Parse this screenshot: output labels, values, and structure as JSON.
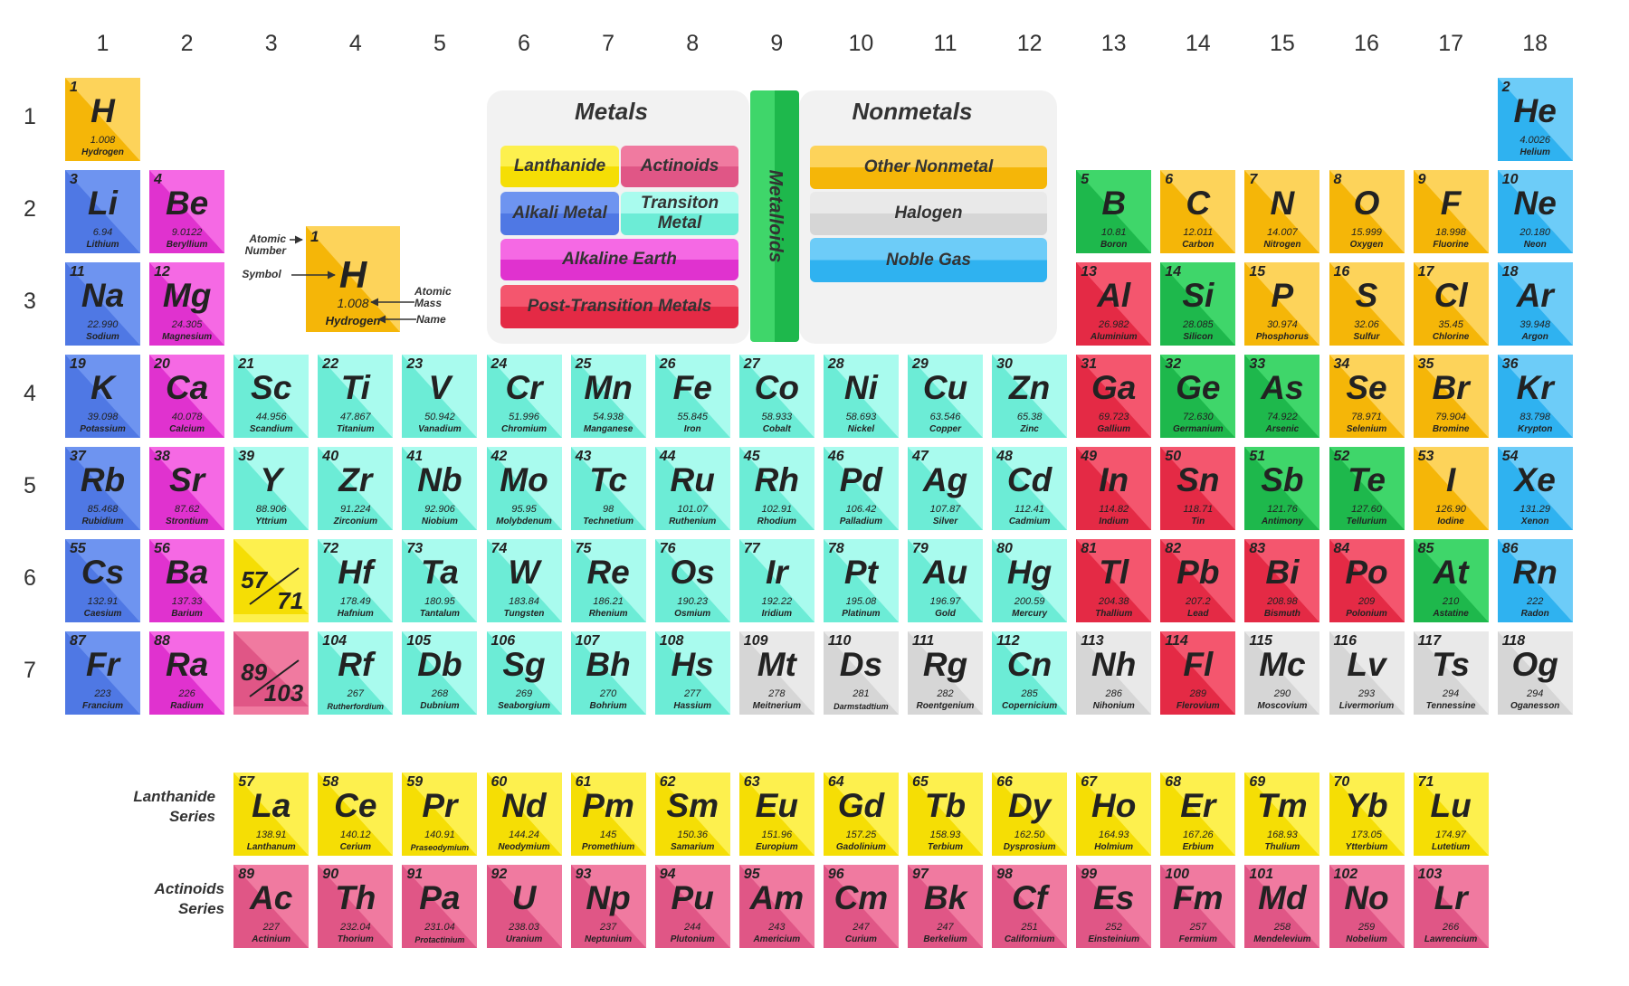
{
  "groups": [
    "1",
    "2",
    "3",
    "4",
    "5",
    "6",
    "7",
    "8",
    "9",
    "10",
    "11",
    "12",
    "13",
    "14",
    "15",
    "16",
    "17",
    "18"
  ],
  "periods": [
    "1",
    "2",
    "3",
    "4",
    "5",
    "6",
    "7"
  ],
  "colors": {
    "alkali": [
      "#6e94f0",
      "#4f78e4"
    ],
    "alkaline": [
      "#f569e4",
      "#e032cf"
    ],
    "transition": [
      "#a9fbee",
      "#6cecd6"
    ],
    "post": [
      "#f4566e",
      "#e42a45"
    ],
    "metalloid": [
      "#3fd66a",
      "#1eb84c"
    ],
    "nonmetal": [
      "#fdd35a",
      "#f5b608"
    ],
    "halogen": [
      "#fdd35a",
      "#f5b608"
    ],
    "noble": [
      "#6dccf8",
      "#2fb2f0"
    ],
    "unknown": [
      "#e9e9e9",
      "#d6d6d6"
    ],
    "lanthanide": [
      "#fdf04e",
      "#f5de05"
    ],
    "actinide": [
      "#f07aa0",
      "#e05686"
    ]
  },
  "elements": [
    {
      "n": "1",
      "s": "H",
      "m": "1.008",
      "name": "Hydrogen",
      "g": 1,
      "p": 1,
      "c": "nonmetal"
    },
    {
      "n": "2",
      "s": "He",
      "m": "4.0026",
      "name": "Helium",
      "g": 18,
      "p": 1,
      "c": "noble"
    },
    {
      "n": "3",
      "s": "Li",
      "m": "6.94",
      "name": "Lithium",
      "g": 1,
      "p": 2,
      "c": "alkali"
    },
    {
      "n": "4",
      "s": "Be",
      "m": "9.0122",
      "name": "Beryllium",
      "g": 2,
      "p": 2,
      "c": "alkaline"
    },
    {
      "n": "5",
      "s": "B",
      "m": "10.81",
      "name": "Boron",
      "g": 13,
      "p": 2,
      "c": "metalloid"
    },
    {
      "n": "6",
      "s": "C",
      "m": "12.011",
      "name": "Carbon",
      "g": 14,
      "p": 2,
      "c": "nonmetal"
    },
    {
      "n": "7",
      "s": "N",
      "m": "14.007",
      "name": "Nitrogen",
      "g": 15,
      "p": 2,
      "c": "nonmetal"
    },
    {
      "n": "8",
      "s": "O",
      "m": "15.999",
      "name": "Oxygen",
      "g": 16,
      "p": 2,
      "c": "nonmetal"
    },
    {
      "n": "9",
      "s": "F",
      "m": "18.998",
      "name": "Fluorine",
      "g": 17,
      "p": 2,
      "c": "halogen"
    },
    {
      "n": "10",
      "s": "Ne",
      "m": "20.180",
      "name": "Neon",
      "g": 18,
      "p": 2,
      "c": "noble"
    },
    {
      "n": "11",
      "s": "Na",
      "m": "22.990",
      "name": "Sodium",
      "g": 1,
      "p": 3,
      "c": "alkali"
    },
    {
      "n": "12",
      "s": "Mg",
      "m": "24.305",
      "name": "Magnesium",
      "g": 2,
      "p": 3,
      "c": "alkaline"
    },
    {
      "n": "13",
      "s": "Al",
      "m": "26.982",
      "name": "Aluminium",
      "g": 13,
      "p": 3,
      "c": "post"
    },
    {
      "n": "14",
      "s": "Si",
      "m": "28.085",
      "name": "Silicon",
      "g": 14,
      "p": 3,
      "c": "metalloid"
    },
    {
      "n": "15",
      "s": "P",
      "m": "30.974",
      "name": "Phosphorus",
      "g": 15,
      "p": 3,
      "c": "nonmetal"
    },
    {
      "n": "16",
      "s": "S",
      "m": "32.06",
      "name": "Sulfur",
      "g": 16,
      "p": 3,
      "c": "nonmetal"
    },
    {
      "n": "17",
      "s": "Cl",
      "m": "35.45",
      "name": "Chlorine",
      "g": 17,
      "p": 3,
      "c": "halogen"
    },
    {
      "n": "18",
      "s": "Ar",
      "m": "39.948",
      "name": "Argon",
      "g": 18,
      "p": 3,
      "c": "noble"
    },
    {
      "n": "19",
      "s": "K",
      "m": "39.098",
      "name": "Potassium",
      "g": 1,
      "p": 4,
      "c": "alkali"
    },
    {
      "n": "20",
      "s": "Ca",
      "m": "40.078",
      "name": "Calcium",
      "g": 2,
      "p": 4,
      "c": "alkaline"
    },
    {
      "n": "21",
      "s": "Sc",
      "m": "44.956",
      "name": "Scandium",
      "g": 3,
      "p": 4,
      "c": "transition"
    },
    {
      "n": "22",
      "s": "Ti",
      "m": "47.867",
      "name": "Titanium",
      "g": 4,
      "p": 4,
      "c": "transition"
    },
    {
      "n": "23",
      "s": "V",
      "m": "50.942",
      "name": "Vanadium",
      "g": 5,
      "p": 4,
      "c": "transition"
    },
    {
      "n": "24",
      "s": "Cr",
      "m": "51.996",
      "name": "Chromium",
      "g": 6,
      "p": 4,
      "c": "transition"
    },
    {
      "n": "25",
      "s": "Mn",
      "m": "54.938",
      "name": "Manganese",
      "g": 7,
      "p": 4,
      "c": "transition"
    },
    {
      "n": "26",
      "s": "Fe",
      "m": "55.845",
      "name": "Iron",
      "g": 8,
      "p": 4,
      "c": "transition"
    },
    {
      "n": "27",
      "s": "Co",
      "m": "58.933",
      "name": "Cobalt",
      "g": 9,
      "p": 4,
      "c": "transition"
    },
    {
      "n": "28",
      "s": "Ni",
      "m": "58.693",
      "name": "Nickel",
      "g": 10,
      "p": 4,
      "c": "transition"
    },
    {
      "n": "29",
      "s": "Cu",
      "m": "63.546",
      "name": "Copper",
      "g": 11,
      "p": 4,
      "c": "transition"
    },
    {
      "n": "30",
      "s": "Zn",
      "m": "65.38",
      "name": "Zinc",
      "g": 12,
      "p": 4,
      "c": "transition"
    },
    {
      "n": "31",
      "s": "Ga",
      "m": "69.723",
      "name": "Gallium",
      "g": 13,
      "p": 4,
      "c": "post"
    },
    {
      "n": "32",
      "s": "Ge",
      "m": "72.630",
      "name": "Germanium",
      "g": 14,
      "p": 4,
      "c": "metalloid"
    },
    {
      "n": "33",
      "s": "As",
      "m": "74.922",
      "name": "Arsenic",
      "g": 15,
      "p": 4,
      "c": "metalloid"
    },
    {
      "n": "34",
      "s": "Se",
      "m": "78.971",
      "name": "Selenium",
      "g": 16,
      "p": 4,
      "c": "nonmetal"
    },
    {
      "n": "35",
      "s": "Br",
      "m": "79.904",
      "name": "Bromine",
      "g": 17,
      "p": 4,
      "c": "halogen"
    },
    {
      "n": "36",
      "s": "Kr",
      "m": "83.798",
      "name": "Krypton",
      "g": 18,
      "p": 4,
      "c": "noble"
    },
    {
      "n": "37",
      "s": "Rb",
      "m": "85.468",
      "name": "Rubidium",
      "g": 1,
      "p": 5,
      "c": "alkali"
    },
    {
      "n": "38",
      "s": "Sr",
      "m": "87.62",
      "name": "Strontium",
      "g": 2,
      "p": 5,
      "c": "alkaline"
    },
    {
      "n": "39",
      "s": "Y",
      "m": "88.906",
      "name": "Yttrium",
      "g": 3,
      "p": 5,
      "c": "transition"
    },
    {
      "n": "40",
      "s": "Zr",
      "m": "91.224",
      "name": "Zirconium",
      "g": 4,
      "p": 5,
      "c": "transition"
    },
    {
      "n": "41",
      "s": "Nb",
      "m": "92.906",
      "name": "Niobium",
      "g": 5,
      "p": 5,
      "c": "transition"
    },
    {
      "n": "42",
      "s": "Mo",
      "m": "95.95",
      "name": "Molybdenum",
      "g": 6,
      "p": 5,
      "c": "transition"
    },
    {
      "n": "43",
      "s": "Tc",
      "m": "98",
      "name": "Technetium",
      "g": 7,
      "p": 5,
      "c": "transition"
    },
    {
      "n": "44",
      "s": "Ru",
      "m": "101.07",
      "name": "Ruthenium",
      "g": 8,
      "p": 5,
      "c": "transition"
    },
    {
      "n": "45",
      "s": "Rh",
      "m": "102.91",
      "name": "Rhodium",
      "g": 9,
      "p": 5,
      "c": "transition"
    },
    {
      "n": "46",
      "s": "Pd",
      "m": "106.42",
      "name": "Palladium",
      "g": 10,
      "p": 5,
      "c": "transition"
    },
    {
      "n": "47",
      "s": "Ag",
      "m": "107.87",
      "name": "Silver",
      "g": 11,
      "p": 5,
      "c": "transition"
    },
    {
      "n": "48",
      "s": "Cd",
      "m": "112.41",
      "name": "Cadmium",
      "g": 12,
      "p": 5,
      "c": "transition"
    },
    {
      "n": "49",
      "s": "In",
      "m": "114.82",
      "name": "Indium",
      "g": 13,
      "p": 5,
      "c": "post"
    },
    {
      "n": "50",
      "s": "Sn",
      "m": "118.71",
      "name": "Tin",
      "g": 14,
      "p": 5,
      "c": "post"
    },
    {
      "n": "51",
      "s": "Sb",
      "m": "121.76",
      "name": "Antimony",
      "g": 15,
      "p": 5,
      "c": "metalloid"
    },
    {
      "n": "52",
      "s": "Te",
      "m": "127.60",
      "name": "Tellurium",
      "g": 16,
      "p": 5,
      "c": "metalloid"
    },
    {
      "n": "53",
      "s": "I",
      "m": "126.90",
      "name": "Iodine",
      "g": 17,
      "p": 5,
      "c": "halogen"
    },
    {
      "n": "54",
      "s": "Xe",
      "m": "131.29",
      "name": "Xenon",
      "g": 18,
      "p": 5,
      "c": "noble"
    },
    {
      "n": "55",
      "s": "Cs",
      "m": "132.91",
      "name": "Caesium",
      "g": 1,
      "p": 6,
      "c": "alkali"
    },
    {
      "n": "56",
      "s": "Ba",
      "m": "137.33",
      "name": "Barium",
      "g": 2,
      "p": 6,
      "c": "alkaline"
    },
    {
      "n": "72",
      "s": "Hf",
      "m": "178.49",
      "name": "Hafnium",
      "g": 4,
      "p": 6,
      "c": "transition"
    },
    {
      "n": "73",
      "s": "Ta",
      "m": "180.95",
      "name": "Tantalum",
      "g": 5,
      "p": 6,
      "c": "transition"
    },
    {
      "n": "74",
      "s": "W",
      "m": "183.84",
      "name": "Tungsten",
      "g": 6,
      "p": 6,
      "c": "transition"
    },
    {
      "n": "75",
      "s": "Re",
      "m": "186.21",
      "name": "Rhenium",
      "g": 7,
      "p": 6,
      "c": "transition"
    },
    {
      "n": "76",
      "s": "Os",
      "m": "190.23",
      "name": "Osmium",
      "g": 8,
      "p": 6,
      "c": "transition"
    },
    {
      "n": "77",
      "s": "Ir",
      "m": "192.22",
      "name": "Iridium",
      "g": 9,
      "p": 6,
      "c": "transition"
    },
    {
      "n": "78",
      "s": "Pt",
      "m": "195.08",
      "name": "Platinum",
      "g": 10,
      "p": 6,
      "c": "transition"
    },
    {
      "n": "79",
      "s": "Au",
      "m": "196.97",
      "name": "Gold",
      "g": 11,
      "p": 6,
      "c": "transition"
    },
    {
      "n": "80",
      "s": "Hg",
      "m": "200.59",
      "name": "Mercury",
      "g": 12,
      "p": 6,
      "c": "transition"
    },
    {
      "n": "81",
      "s": "Tl",
      "m": "204.38",
      "name": "Thallium",
      "g": 13,
      "p": 6,
      "c": "post"
    },
    {
      "n": "82",
      "s": "Pb",
      "m": "207.2",
      "name": "Lead",
      "g": 14,
      "p": 6,
      "c": "post"
    },
    {
      "n": "83",
      "s": "Bi",
      "m": "208.98",
      "name": "Bismuth",
      "g": 15,
      "p": 6,
      "c": "post"
    },
    {
      "n": "84",
      "s": "Po",
      "m": "209",
      "name": "Polonium",
      "g": 16,
      "p": 6,
      "c": "post"
    },
    {
      "n": "85",
      "s": "At",
      "m": "210",
      "name": "Astatine",
      "g": 17,
      "p": 6,
      "c": "metalloid"
    },
    {
      "n": "86",
      "s": "Rn",
      "m": "222",
      "name": "Radon",
      "g": 18,
      "p": 6,
      "c": "noble"
    },
    {
      "n": "87",
      "s": "Fr",
      "m": "223",
      "name": "Francium",
      "g": 1,
      "p": 7,
      "c": "alkali"
    },
    {
      "n": "88",
      "s": "Ra",
      "m": "226",
      "name": "Radium",
      "g": 2,
      "p": 7,
      "c": "alkaline"
    },
    {
      "n": "104",
      "s": "Rf",
      "m": "267",
      "name": "Rutherfordium",
      "g": 4,
      "p": 7,
      "c": "transition"
    },
    {
      "n": "105",
      "s": "Db",
      "m": "268",
      "name": "Dubnium",
      "g": 5,
      "p": 7,
      "c": "transition"
    },
    {
      "n": "106",
      "s": "Sg",
      "m": "269",
      "name": "Seaborgium",
      "g": 6,
      "p": 7,
      "c": "transition"
    },
    {
      "n": "107",
      "s": "Bh",
      "m": "270",
      "name": "Bohrium",
      "g": 7,
      "p": 7,
      "c": "transition"
    },
    {
      "n": "108",
      "s": "Hs",
      "m": "277",
      "name": "Hassium",
      "g": 8,
      "p": 7,
      "c": "transition"
    },
    {
      "n": "109",
      "s": "Mt",
      "m": "278",
      "name": "Meitnerium",
      "g": 9,
      "p": 7,
      "c": "unknown"
    },
    {
      "n": "110",
      "s": "Ds",
      "m": "281",
      "name": "Darmstadtium",
      "g": 10,
      "p": 7,
      "c": "unknown"
    },
    {
      "n": "111",
      "s": "Rg",
      "m": "282",
      "name": "Roentgenium",
      "g": 11,
      "p": 7,
      "c": "unknown"
    },
    {
      "n": "112",
      "s": "Cn",
      "m": "285",
      "name": "Copernicium",
      "g": 12,
      "p": 7,
      "c": "transition"
    },
    {
      "n": "113",
      "s": "Nh",
      "m": "286",
      "name": "Nihonium",
      "g": 13,
      "p": 7,
      "c": "unknown"
    },
    {
      "n": "114",
      "s": "Fl",
      "m": "289",
      "name": "Flerovium",
      "g": 14,
      "p": 7,
      "c": "post"
    },
    {
      "n": "115",
      "s": "Mc",
      "m": "290",
      "name": "Moscovium",
      "g": 15,
      "p": 7,
      "c": "unknown"
    },
    {
      "n": "116",
      "s": "Lv",
      "m": "293",
      "name": "Livermorium",
      "g": 16,
      "p": 7,
      "c": "unknown"
    },
    {
      "n": "117",
      "s": "Ts",
      "m": "294",
      "name": "Tennessine",
      "g": 17,
      "p": 7,
      "c": "unknown"
    },
    {
      "n": "118",
      "s": "Og",
      "m": "294",
      "name": "Oganesson",
      "g": 18,
      "p": 7,
      "c": "unknown"
    },
    {
      "n": "57",
      "s": "La",
      "m": "138.91",
      "name": "Lanthanum",
      "g": 3,
      "p": 9,
      "c": "lanthanide"
    },
    {
      "n": "58",
      "s": "Ce",
      "m": "140.12",
      "name": "Cerium",
      "g": 4,
      "p": 9,
      "c": "lanthanide"
    },
    {
      "n": "59",
      "s": "Pr",
      "m": "140.91",
      "name": "Praseodymium",
      "g": 5,
      "p": 9,
      "c": "lanthanide"
    },
    {
      "n": "60",
      "s": "Nd",
      "m": "144.24",
      "name": "Neodymium",
      "g": 6,
      "p": 9,
      "c": "lanthanide"
    },
    {
      "n": "61",
      "s": "Pm",
      "m": "145",
      "name": "Promethium",
      "g": 7,
      "p": 9,
      "c": "lanthanide"
    },
    {
      "n": "62",
      "s": "Sm",
      "m": "150.36",
      "name": "Samarium",
      "g": 8,
      "p": 9,
      "c": "lanthanide"
    },
    {
      "n": "63",
      "s": "Eu",
      "m": "151.96",
      "name": "Europium",
      "g": 9,
      "p": 9,
      "c": "lanthanide"
    },
    {
      "n": "64",
      "s": "Gd",
      "m": "157.25",
      "name": "Gadolinium",
      "g": 10,
      "p": 9,
      "c": "lanthanide"
    },
    {
      "n": "65",
      "s": "Tb",
      "m": "158.93",
      "name": "Terbium",
      "g": 11,
      "p": 9,
      "c": "lanthanide"
    },
    {
      "n": "66",
      "s": "Dy",
      "m": "162.50",
      "name": "Dysprosium",
      "g": 12,
      "p": 9,
      "c": "lanthanide"
    },
    {
      "n": "67",
      "s": "Ho",
      "m": "164.93",
      "name": "Holmium",
      "g": 13,
      "p": 9,
      "c": "lanthanide"
    },
    {
      "n": "68",
      "s": "Er",
      "m": "167.26",
      "name": "Erbium",
      "g": 14,
      "p": 9,
      "c": "lanthanide"
    },
    {
      "n": "69",
      "s": "Tm",
      "m": "168.93",
      "name": "Thulium",
      "g": 15,
      "p": 9,
      "c": "lanthanide"
    },
    {
      "n": "70",
      "s": "Yb",
      "m": "173.05",
      "name": "Ytterbium",
      "g": 16,
      "p": 9,
      "c": "lanthanide"
    },
    {
      "n": "71",
      "s": "Lu",
      "m": "174.97",
      "name": "Lutetium",
      "g": 17,
      "p": 9,
      "c": "lanthanide"
    },
    {
      "n": "89",
      "s": "Ac",
      "m": "227",
      "name": "Actinium",
      "g": 3,
      "p": 10,
      "c": "actinide"
    },
    {
      "n": "90",
      "s": "Th",
      "m": "232.04",
      "name": "Thorium",
      "g": 4,
      "p": 10,
      "c": "actinide"
    },
    {
      "n": "91",
      "s": "Pa",
      "m": "231.04",
      "name": "Protactinium",
      "g": 5,
      "p": 10,
      "c": "actinide"
    },
    {
      "n": "92",
      "s": "U",
      "m": "238.03",
      "name": "Uranium",
      "g": 6,
      "p": 10,
      "c": "actinide"
    },
    {
      "n": "93",
      "s": "Np",
      "m": "237",
      "name": "Neptunium",
      "g": 7,
      "p": 10,
      "c": "actinide"
    },
    {
      "n": "94",
      "s": "Pu",
      "m": "244",
      "name": "Plutonium",
      "g": 8,
      "p": 10,
      "c": "actinide"
    },
    {
      "n": "95",
      "s": "Am",
      "m": "243",
      "name": "Americium",
      "g": 9,
      "p": 10,
      "c": "actinide"
    },
    {
      "n": "96",
      "s": "Cm",
      "m": "247",
      "name": "Curium",
      "g": 10,
      "p": 10,
      "c": "actinide"
    },
    {
      "n": "97",
      "s": "Bk",
      "m": "247",
      "name": "Berkelium",
      "g": 11,
      "p": 10,
      "c": "actinide"
    },
    {
      "n": "98",
      "s": "Cf",
      "m": "251",
      "name": "Californium",
      "g": 12,
      "p": 10,
      "c": "actinide"
    },
    {
      "n": "99",
      "s": "Es",
      "m": "252",
      "name": "Einsteinium",
      "g": 13,
      "p": 10,
      "c": "actinide"
    },
    {
      "n": "100",
      "s": "Fm",
      "m": "257",
      "name": "Fermium",
      "g": 14,
      "p": 10,
      "c": "actinide"
    },
    {
      "n": "101",
      "s": "Md",
      "m": "258",
      "name": "Mendelevium",
      "g": 15,
      "p": 10,
      "c": "actinide"
    },
    {
      "n": "102",
      "s": "No",
      "m": "259",
      "name": "Nobelium",
      "g": 16,
      "p": 10,
      "c": "actinide"
    },
    {
      "n": "103",
      "s": "Lr",
      "m": "266",
      "name": "Lawrencium",
      "g": 17,
      "p": 10,
      "c": "actinide"
    }
  ],
  "placeholders": [
    {
      "lo": "57",
      "hi": "71",
      "g": 3,
      "p": 6,
      "c": "lanthanide"
    },
    {
      "lo": "89",
      "hi": "103",
      "g": 3,
      "p": 7,
      "c": "actinide"
    }
  ],
  "key": {
    "n": "1",
    "s": "H",
    "m": "1.008",
    "name": "Hydrogen",
    "atomic_number_label": "Atomic Number",
    "symbol_label": "Symbol",
    "atomic_mass_label": "Atomic Mass",
    "name_label": "Name"
  },
  "legend": {
    "metals_title": "Metals",
    "lanthanide": "Lanthanide",
    "actinoids": "Actinoids",
    "alkali": "Alkali Metal",
    "transition": "Transiton Metal",
    "alkaline": "Alkaline Earth",
    "post": "Post-Transition Metals",
    "metalloids": "Metalloids",
    "nonmetals_title": "Nonmetals",
    "other_nonmetal": "Other Nonmetal",
    "halogen": "Halogen",
    "noble": "Noble Gas"
  },
  "series": {
    "lanthanide": "Lanthanide Series",
    "actinoid": "Actinoids Series"
  }
}
